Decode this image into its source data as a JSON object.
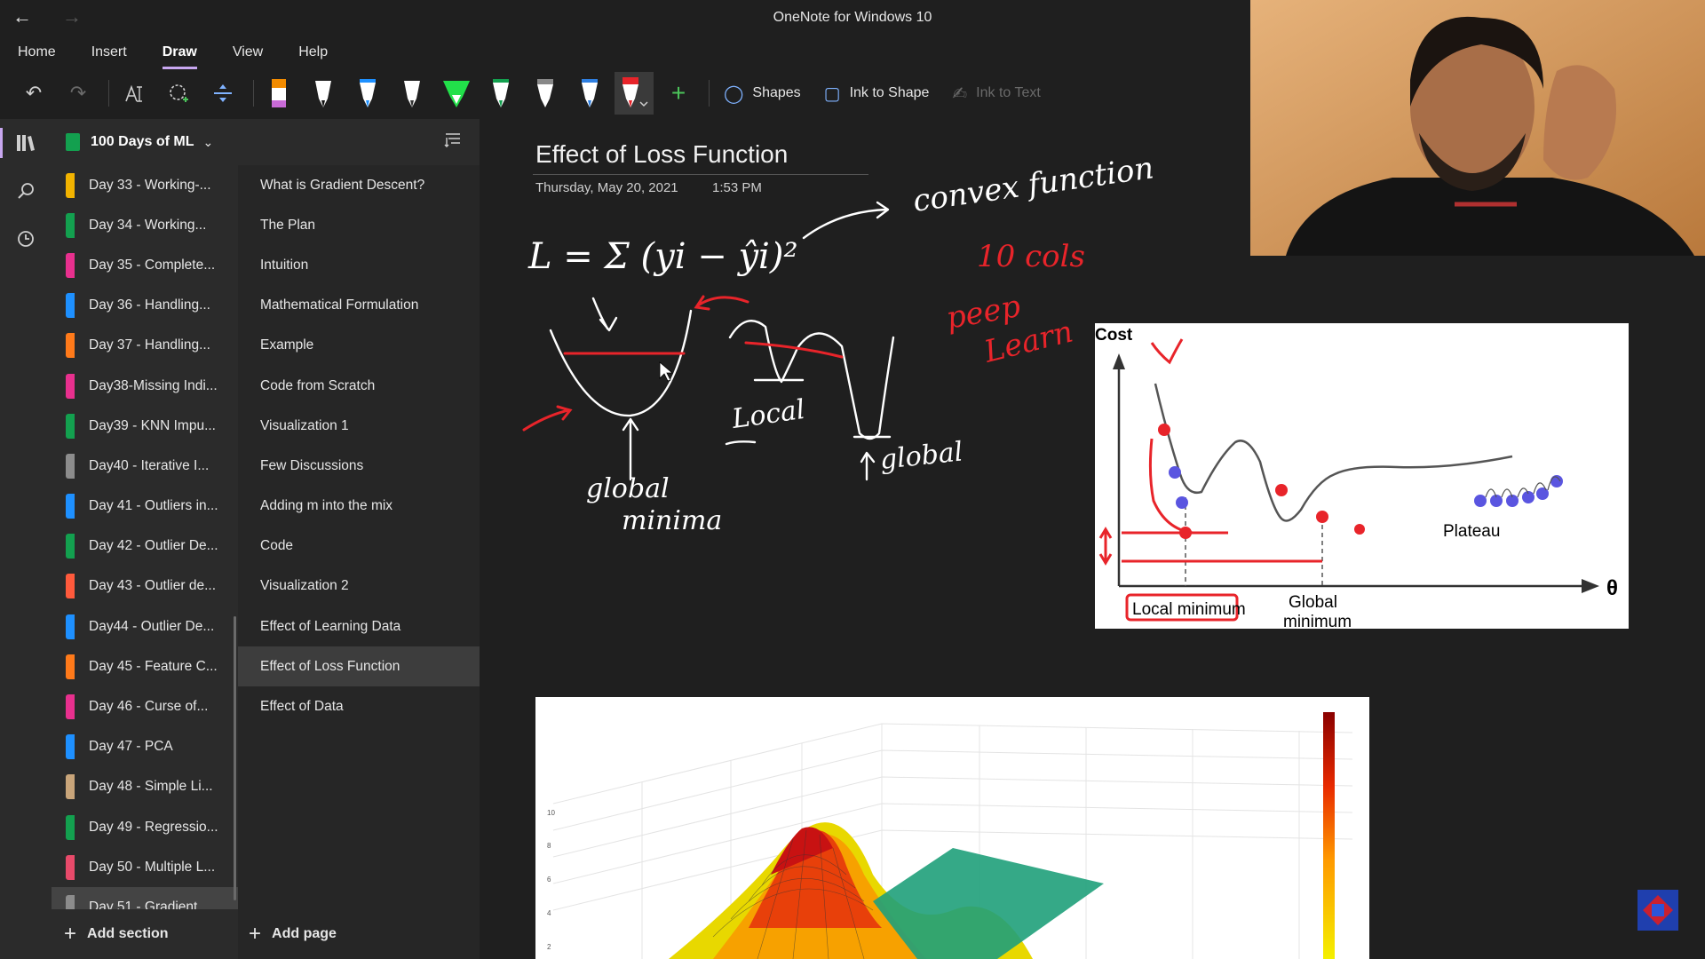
{
  "window": {
    "title": "OneNote for Windows 10"
  },
  "ribbon": {
    "tabs": [
      "Home",
      "Insert",
      "Draw",
      "View",
      "Help"
    ],
    "active_tab": "Draw",
    "shapes_label": "Shapes",
    "ink_to_shape_label": "Ink to Shape",
    "ink_to_text_label": "Ink to Text"
  },
  "notebook": {
    "name": "100 Days of ML"
  },
  "sections": [
    {
      "label": "Day 33 - Working-...",
      "color": "#f2b300"
    },
    {
      "label": "Day 34 - Working...",
      "color": "#13a04f"
    },
    {
      "label": "Day 35 - Complete...",
      "color": "#e8308e"
    },
    {
      "label": "Day 36 - Handling...",
      "color": "#1e90ff"
    },
    {
      "label": "Day 37 - Handling...",
      "color": "#ff7a1a"
    },
    {
      "label": "Day38-Missing Indi...",
      "color": "#e8308e"
    },
    {
      "label": "Day39 - KNN Impu...",
      "color": "#13a04f"
    },
    {
      "label": "Day40 - Iterative I...",
      "color": "#8c8c8c"
    },
    {
      "label": "Day 41 - Outliers in...",
      "color": "#1e90ff"
    },
    {
      "label": "Day 42 - Outlier De...",
      "color": "#13a04f"
    },
    {
      "label": "Day 43 - Outlier de...",
      "color": "#ff5a3c"
    },
    {
      "label": "Day44 - Outlier De...",
      "color": "#1e90ff"
    },
    {
      "label": "Day 45 - Feature C...",
      "color": "#ff7a1a"
    },
    {
      "label": "Day 46 - Curse of...",
      "color": "#e8308e"
    },
    {
      "label": "Day 47 - PCA",
      "color": "#1e90ff"
    },
    {
      "label": "Day 48 - Simple Li...",
      "color": "#c9a57a"
    },
    {
      "label": "Day 49 - Regressio...",
      "color": "#13a04f"
    },
    {
      "label": "Day 50 - Multiple L...",
      "color": "#e84a6a"
    },
    {
      "label": "Day 51 - Gradient...",
      "color": "#8c8c8c"
    }
  ],
  "selected_section": 18,
  "pages": [
    "What is Gradient Descent?",
    "The Plan",
    "Intuition",
    "Mathematical Formulation",
    "Example",
    "Code from Scratch",
    "Visualization 1",
    "Few Discussions",
    "Adding m into the mix",
    "Code",
    "Visualization 2",
    "Effect of Learning Data",
    "Effect of Loss Function",
    "Effect of Data"
  ],
  "selected_page": 12,
  "footer": {
    "add_section": "Add section",
    "add_page": "Add page"
  },
  "page": {
    "title": "Effect of Loss Function",
    "date": "Thursday, May 20, 2021",
    "time": "1:53 PM"
  },
  "ink_notes": {
    "formula": "L = Σ (yi − ŷi)²",
    "convex": "convex function",
    "cols": "10 cols",
    "peep": "peep",
    "learn": "Learn",
    "local": "Local",
    "global_minima": [
      "global",
      "minima"
    ],
    "global": "global"
  },
  "cost_figure": {
    "ylabel": "Cost",
    "xlabel": "θ",
    "local_minimum": "Local minimum",
    "global_minimum": [
      "Global",
      "minimum"
    ],
    "plateau": "Plateau"
  },
  "colors": {
    "accent": "#c8a7f0",
    "ink_red": "#e8242a",
    "ink_white": "#ffffff"
  }
}
